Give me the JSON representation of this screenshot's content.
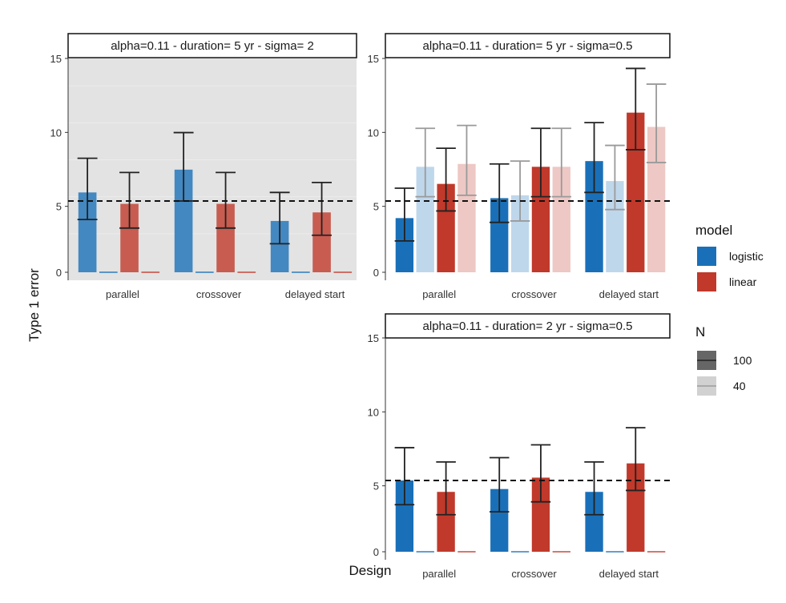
{
  "axis_titles": {
    "x": "Design",
    "y": "Type 1 error"
  },
  "colors": {
    "logistic": "#1a70b8",
    "linear": "#c0392b",
    "panel_grey": "#e3e3e3",
    "errorbar_n100": "#222222",
    "errorbar_n40": "#9a9a9a"
  },
  "legend": {
    "model": {
      "title": "model",
      "items": [
        {
          "label": "logistic",
          "color": "#1a70b8"
        },
        {
          "label": "linear",
          "color": "#c0392b"
        }
      ]
    },
    "n": {
      "title": "N",
      "items": [
        {
          "label": "100",
          "alpha": 1.0
        },
        {
          "label": "40",
          "alpha": 0.3
        }
      ]
    }
  },
  "chart_data": [
    {
      "type": "bar",
      "title": "alpha=0.11 - duration=  5 yr - sigma= 2",
      "background": "grey",
      "categories": [
        "parallel",
        "crossover",
        "delayed start"
      ],
      "ylim": [
        0,
        15
      ],
      "yticks": [
        0,
        5,
        10,
        15
      ],
      "reference_line": 5,
      "series": [
        {
          "name": "logistic",
          "N": "100",
          "values": [
            5.6,
            7.2,
            3.6
          ],
          "lower": [
            3.7,
            5.0,
            2.0
          ],
          "upper": [
            8.0,
            9.8,
            5.6
          ]
        },
        {
          "name": "logistic",
          "N": "40",
          "values": [
            0,
            0,
            0
          ]
        },
        {
          "name": "linear",
          "N": "100",
          "values": [
            4.8,
            4.8,
            4.2
          ],
          "lower": [
            3.1,
            3.1,
            2.6
          ],
          "upper": [
            7.0,
            7.0,
            6.3
          ]
        },
        {
          "name": "linear",
          "N": "40",
          "values": [
            0,
            0,
            0
          ]
        }
      ]
    },
    {
      "type": "bar",
      "title": "alpha=0.11 - duration=  5 yr - sigma=0.5",
      "background": "white",
      "categories": [
        "parallel",
        "crossover",
        "delayed start"
      ],
      "ylim": [
        0,
        15
      ],
      "yticks": [
        0,
        5,
        10,
        15
      ],
      "reference_line": 5,
      "series": [
        {
          "name": "logistic",
          "N": "100",
          "values": [
            3.8,
            5.2,
            7.8
          ],
          "lower": [
            2.2,
            3.5,
            5.6
          ],
          "upper": [
            5.9,
            7.6,
            10.5
          ]
        },
        {
          "name": "logistic",
          "N": "40",
          "values": [
            7.4,
            5.4,
            6.4
          ],
          "lower": [
            5.3,
            3.6,
            4.4
          ],
          "upper": [
            10.1,
            7.8,
            8.9
          ]
        },
        {
          "name": "linear",
          "N": "100",
          "values": [
            6.2,
            7.4,
            11.2
          ],
          "lower": [
            4.3,
            5.3,
            8.6
          ],
          "upper": [
            8.7,
            10.1,
            14.3
          ]
        },
        {
          "name": "linear",
          "N": "40",
          "values": [
            7.6,
            7.4,
            10.2
          ],
          "lower": [
            5.4,
            5.3,
            7.7
          ],
          "upper": [
            10.3,
            10.1,
            13.2
          ]
        }
      ]
    },
    {
      "type": "bar",
      "title": "alpha=0.11 - duration= 2 yr - sigma=0.5",
      "background": "white",
      "categories": [
        "parallel",
        "crossover",
        "delayed start"
      ],
      "ylim": [
        0,
        15
      ],
      "yticks": [
        0,
        5,
        10,
        15
      ],
      "reference_line": 5,
      "series": [
        {
          "name": "logistic",
          "N": "100",
          "values": [
            5.0,
            4.4,
            4.2
          ],
          "lower": [
            3.3,
            2.8,
            2.6
          ],
          "upper": [
            7.3,
            6.6,
            6.3
          ]
        },
        {
          "name": "logistic",
          "N": "40",
          "values": [
            0,
            0,
            0
          ]
        },
        {
          "name": "linear",
          "N": "100",
          "values": [
            4.2,
            5.2,
            6.2
          ],
          "lower": [
            2.6,
            3.5,
            4.3
          ],
          "upper": [
            6.3,
            7.5,
            8.7
          ]
        },
        {
          "name": "linear",
          "N": "40",
          "values": [
            0,
            0,
            0
          ]
        }
      ]
    }
  ]
}
